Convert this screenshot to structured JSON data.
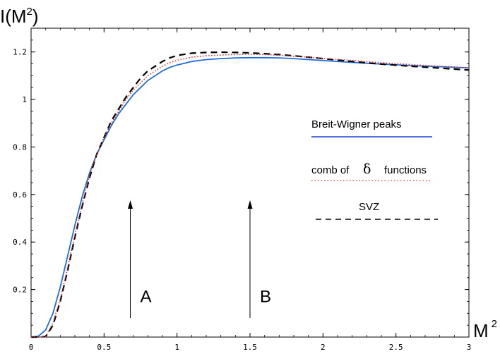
{
  "chart_data": {
    "type": "line",
    "ylabel": {
      "base": "I(M",
      "sup": "2",
      "close": ")"
    },
    "xlabel": {
      "base": "M",
      "sup": "2"
    },
    "xlim": [
      0,
      3
    ],
    "ylim": [
      0,
      1.3
    ],
    "grid": false,
    "x_ticks": [
      0,
      0.5,
      1,
      1.5,
      2,
      2.5,
      3
    ],
    "x_tick_labels": [
      "0",
      "0.5",
      "1",
      "1.5",
      "2",
      "2.5",
      "3"
    ],
    "y_ticks": [
      0.2,
      0.4,
      0.6,
      0.8,
      1,
      1.2
    ],
    "y_tick_labels": [
      "0.2",
      "0.4",
      "0.6",
      "0.8",
      "1",
      "1.2"
    ],
    "legend_position": "right",
    "legend": [
      {
        "label": "Breit-Wigner peaks",
        "style": "solid"
      },
      {
        "label_parts": [
          "comb of",
          "δ",
          "functions"
        ],
        "style": "dotted"
      },
      {
        "label": "SVZ",
        "style": "dashed"
      }
    ],
    "series": [
      {
        "style": "solid",
        "color": "#1f6fd6",
        "x": [
          0,
          0.05,
          0.1,
          0.15,
          0.2,
          0.25,
          0.3,
          0.35,
          0.4,
          0.45,
          0.5,
          0.55,
          0.6,
          0.65,
          0.7,
          0.75,
          0.8,
          0.85,
          0.9,
          0.95,
          1.0,
          1.1,
          1.2,
          1.3,
          1.4,
          1.5,
          1.6,
          1.7,
          1.8,
          1.9,
          2.0,
          2.2,
          2.4,
          2.6,
          2.8,
          3.0
        ],
        "y": [
          0,
          0.004,
          0.03,
          0.1,
          0.21,
          0.34,
          0.47,
          0.59,
          0.69,
          0.77,
          0.83,
          0.89,
          0.94,
          0.98,
          1.02,
          1.05,
          1.08,
          1.1,
          1.12,
          1.135,
          1.145,
          1.16,
          1.168,
          1.172,
          1.175,
          1.176,
          1.176,
          1.175,
          1.172,
          1.168,
          1.164,
          1.156,
          1.149,
          1.143,
          1.138,
          1.133
        ]
      },
      {
        "style": "dotted",
        "color": "#e03030",
        "x": [
          0,
          0.05,
          0.1,
          0.15,
          0.2,
          0.25,
          0.3,
          0.35,
          0.4,
          0.45,
          0.5,
          0.55,
          0.6,
          0.65,
          0.7,
          0.75,
          0.8,
          0.85,
          0.9,
          0.95,
          1.0,
          1.1,
          1.2,
          1.3,
          1.4,
          1.5,
          1.6,
          1.7,
          1.8,
          1.9,
          2.0,
          2.2,
          2.4,
          2.6,
          2.8,
          3.0
        ],
        "y": [
          0,
          0,
          0.002,
          0.06,
          0.16,
          0.29,
          0.43,
          0.56,
          0.68,
          0.77,
          0.84,
          0.9,
          0.95,
          1.0,
          1.04,
          1.07,
          1.1,
          1.12,
          1.14,
          1.155,
          1.165,
          1.178,
          1.184,
          1.187,
          1.189,
          1.19,
          1.189,
          1.186,
          1.182,
          1.178,
          1.173,
          1.164,
          1.155,
          1.147,
          1.14,
          1.134
        ]
      },
      {
        "style": "dashed",
        "color": "#000000",
        "x": [
          0,
          0.05,
          0.1,
          0.15,
          0.2,
          0.25,
          0.3,
          0.35,
          0.4,
          0.45,
          0.5,
          0.55,
          0.6,
          0.65,
          0.7,
          0.75,
          0.8,
          0.85,
          0.9,
          0.95,
          1.0,
          1.1,
          1.2,
          1.3,
          1.4,
          1.5,
          1.6,
          1.7,
          1.8,
          1.9,
          2.0,
          2.2,
          2.4,
          2.6,
          2.8,
          3.0
        ],
        "y": [
          0,
          0,
          0.002,
          0.05,
          0.15,
          0.28,
          0.42,
          0.55,
          0.67,
          0.77,
          0.84,
          0.91,
          0.96,
          1.01,
          1.05,
          1.09,
          1.12,
          1.14,
          1.16,
          1.175,
          1.185,
          1.195,
          1.198,
          1.199,
          1.198,
          1.196,
          1.193,
          1.189,
          1.184,
          1.178,
          1.172,
          1.16,
          1.149,
          1.14,
          1.132,
          1.124
        ]
      }
    ],
    "annotations": [
      {
        "label": "A",
        "x": 0.68,
        "y_from": 0.08,
        "y_to": 0.57
      },
      {
        "label": "B",
        "x": 1.5,
        "y_from": 0.08,
        "y_to": 0.57
      }
    ]
  }
}
